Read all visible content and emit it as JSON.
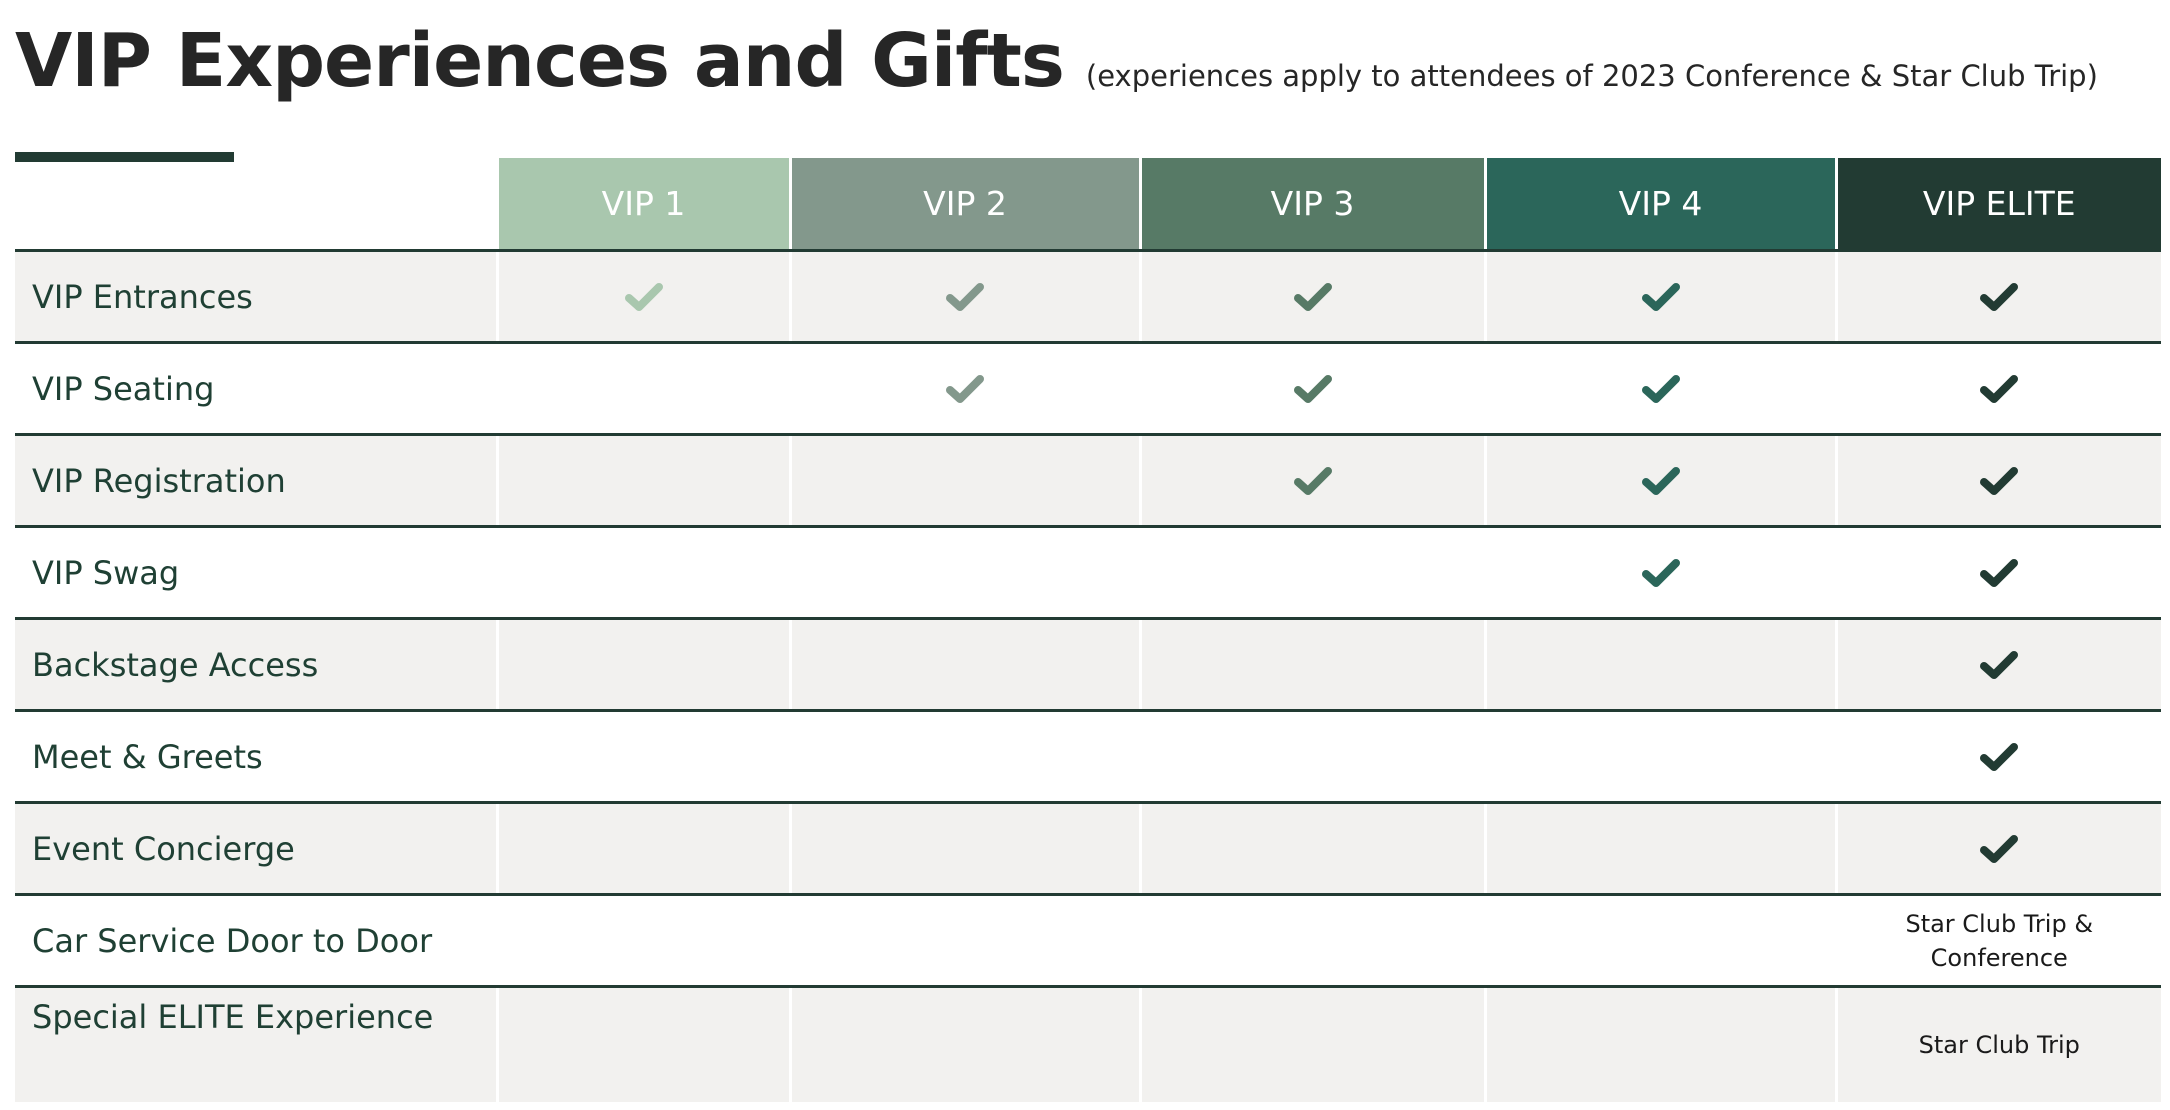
{
  "header": {
    "title": "VIP Experiences and Gifts",
    "subtitle": "(experiences apply to attendees of 2023 Conference & Star Club Trip)"
  },
  "tiers": [
    {
      "label": "VIP 1",
      "color": "#a9c7ae"
    },
    {
      "label": "VIP 2",
      "color": "#83988c"
    },
    {
      "label": "VIP 3",
      "color": "#577a66"
    },
    {
      "label": "VIP 4",
      "color": "#2b665a"
    },
    {
      "label": "VIP ELITE",
      "color": "#223b33"
    }
  ],
  "rows": [
    {
      "label": "VIP Entrances",
      "cells": [
        true,
        true,
        true,
        true,
        true
      ]
    },
    {
      "label": "VIP Seating",
      "cells": [
        false,
        true,
        true,
        true,
        true
      ]
    },
    {
      "label": "VIP Registration",
      "cells": [
        false,
        false,
        true,
        true,
        true
      ]
    },
    {
      "label": "VIP Swag",
      "cells": [
        false,
        false,
        false,
        true,
        true
      ]
    },
    {
      "label": "Backstage Access",
      "cells": [
        false,
        false,
        false,
        false,
        true
      ]
    },
    {
      "label": "Meet & Greets",
      "cells": [
        false,
        false,
        false,
        false,
        true
      ]
    },
    {
      "label": "Event Concierge",
      "cells": [
        false,
        false,
        false,
        false,
        true
      ]
    },
    {
      "label": "Car Service Door to Door",
      "cells": [
        false,
        false,
        false,
        false,
        "Star Club Trip & Conference"
      ]
    },
    {
      "label": "Special ELITE Experience",
      "cells": [
        false,
        false,
        false,
        false,
        "Star Club Trip"
      ]
    }
  ],
  "icons": {
    "check": "check-icon"
  }
}
